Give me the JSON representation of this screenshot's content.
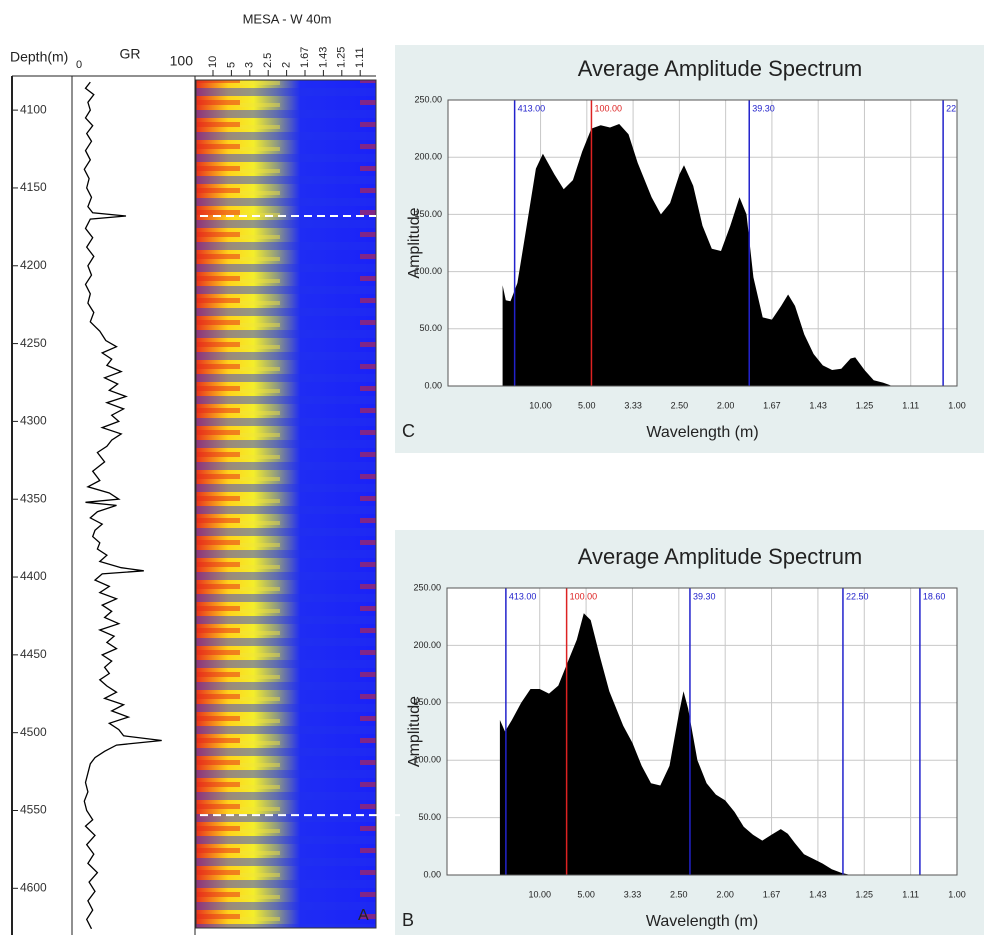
{
  "chart_data": [
    {
      "type": "welllog",
      "ylabel": "Depth(m)",
      "ylim": [
        4080,
        4630
      ],
      "yticks": [
        4100,
        4150,
        4200,
        4250,
        4300,
        4350,
        4400,
        4450,
        4500,
        4550,
        4600
      ],
      "series": [
        {
          "name": "GR",
          "color": "#000000",
          "xlim": [
            0,
            100
          ],
          "xticks": [
            0,
            100
          ],
          "y": [
            4082,
            4086,
            4090,
            4095,
            4100,
            4105,
            4110,
            4115,
            4120,
            4126,
            4132,
            4138,
            4144,
            4150,
            4156,
            4162,
            4166,
            4168,
            4170,
            4176,
            4182,
            4188,
            4194,
            4200,
            4206,
            4212,
            4218,
            4224,
            4230,
            4236,
            4242,
            4248,
            4252,
            4256,
            4260,
            4264,
            4268,
            4272,
            4276,
            4280,
            4284,
            4288,
            4292,
            4296,
            4300,
            4304,
            4308,
            4312,
            4316,
            4320,
            4326,
            4332,
            4338,
            4342,
            4346,
            4350,
            4352,
            4354,
            4358,
            4362,
            4366,
            4370,
            4374,
            4378,
            4382,
            4386,
            4390,
            4394,
            4396,
            4398,
            4402,
            4406,
            4410,
            4414,
            4418,
            4422,
            4426,
            4430,
            4434,
            4438,
            4442,
            4446,
            4450,
            4454,
            4458,
            4462,
            4466,
            4470,
            4474,
            4478,
            4482,
            4486,
            4490,
            4494,
            4498,
            4502,
            4505,
            4508,
            4512,
            4516,
            4520,
            4526,
            4532,
            4538,
            4544,
            4550,
            4556,
            4560,
            4566,
            4572,
            4578,
            4584,
            4590,
            4596,
            4602,
            4608,
            4614,
            4620,
            4626
          ],
          "values": [
            12,
            8,
            15,
            10,
            12,
            8,
            14,
            9,
            13,
            8,
            12,
            7,
            11,
            9,
            13,
            10,
            14,
            42,
            12,
            8,
            14,
            9,
            15,
            10,
            13,
            8,
            12,
            10,
            15,
            12,
            20,
            25,
            34,
            22,
            30,
            26,
            38,
            24,
            35,
            28,
            42,
            26,
            40,
            30,
            36,
            22,
            38,
            30,
            26,
            18,
            24,
            14,
            20,
            10,
            28,
            36,
            8,
            34,
            18,
            12,
            22,
            16,
            14,
            20,
            18,
            26,
            20,
            38,
            57,
            22,
            16,
            28,
            20,
            34,
            22,
            30,
            24,
            36,
            20,
            32,
            26,
            34,
            22,
            30,
            24,
            28,
            20,
            26,
            34,
            24,
            40,
            30,
            44,
            28,
            36,
            40,
            72,
            34,
            24,
            16,
            12,
            10,
            8,
            10,
            7,
            9,
            14,
            8,
            16,
            9,
            15,
            10,
            18,
            11,
            16,
            10,
            14,
            9,
            13
          ]
        }
      ],
      "spectrogram": {
        "title": "MESA - W 40m",
        "categories": [
          "10",
          "5",
          "3",
          "2.5",
          "2",
          "1.67",
          "1.43",
          "1.25",
          "1.11"
        ],
        "panel_label": "A",
        "dashed_depths": [
          4168,
          4553
        ]
      }
    },
    {
      "type": "area",
      "title": "Average Amplitude Spectrum",
      "xlabel": "Wavelength (m)",
      "ylabel": "Amplitude",
      "panel_label": "C",
      "color": "#000000",
      "background": "#e6efef",
      "grid": true,
      "xlim": [
        -0.1,
        1.0
      ],
      "ylim": [
        0,
        250
      ],
      "xticks": [
        {
          "value": 0.1,
          "label": "10.00"
        },
        {
          "value": 0.2,
          "label": "5.00"
        },
        {
          "value": 0.3,
          "label": "3.33"
        },
        {
          "value": 0.4,
          "label": "2.50"
        },
        {
          "value": 0.5,
          "label": "2.00"
        },
        {
          "value": 0.6,
          "label": "1.67"
        },
        {
          "value": 0.7,
          "label": "1.43"
        },
        {
          "value": 0.8,
          "label": "1.25"
        },
        {
          "value": 0.9,
          "label": "1.11"
        },
        {
          "value": 1.0,
          "label": "1.00"
        }
      ],
      "yticks": [
        {
          "value": 0,
          "label": "0.00"
        },
        {
          "value": 50,
          "label": "50.00"
        },
        {
          "value": 100,
          "label": "100.00"
        },
        {
          "value": 150,
          "label": "150.00"
        },
        {
          "value": 200,
          "label": "200.00"
        },
        {
          "value": 250,
          "label": "250.00"
        }
      ],
      "x": [
        0.018,
        0.025,
        0.035,
        0.05,
        0.07,
        0.09,
        0.105,
        0.13,
        0.15,
        0.17,
        0.19,
        0.21,
        0.23,
        0.25,
        0.27,
        0.29,
        0.31,
        0.34,
        0.36,
        0.38,
        0.4,
        0.41,
        0.43,
        0.45,
        0.47,
        0.49,
        0.51,
        0.53,
        0.545,
        0.56,
        0.58,
        0.6,
        0.62,
        0.635,
        0.65,
        0.67,
        0.69,
        0.71,
        0.73,
        0.75,
        0.77,
        0.78,
        0.8,
        0.82,
        0.84,
        0.86
      ],
      "values": [
        88,
        75,
        74,
        90,
        140,
        190,
        203,
        185,
        172,
        180,
        205,
        225,
        228,
        226,
        229,
        220,
        195,
        165,
        150,
        160,
        185,
        193,
        175,
        140,
        120,
        118,
        140,
        165,
        150,
        95,
        60,
        58,
        70,
        80,
        70,
        45,
        28,
        18,
        14,
        15,
        24,
        25,
        14,
        5,
        3,
        0
      ],
      "markers": [
        {
          "label": "413.00",
          "x": 0.044,
          "color": "#2222cc"
        },
        {
          "label": "100.00",
          "x": 0.21,
          "color": "#dd2222"
        },
        {
          "label": "39.30",
          "x": 0.551,
          "color": "#2222cc"
        },
        {
          "label": "22",
          "x": 0.97,
          "color": "#2222cc"
        }
      ]
    },
    {
      "type": "area",
      "title": "Average Amplitude Spectrum",
      "xlabel": "Wavelength (m)",
      "ylabel": "Amplitude",
      "panel_label": "B",
      "color": "#000000",
      "background": "#e6efef",
      "grid": true,
      "xlim": [
        -0.1,
        1.0
      ],
      "ylim": [
        0,
        250
      ],
      "xticks": [
        {
          "value": 0.1,
          "label": "10.00"
        },
        {
          "value": 0.2,
          "label": "5.00"
        },
        {
          "value": 0.3,
          "label": "3.33"
        },
        {
          "value": 0.4,
          "label": "2.50"
        },
        {
          "value": 0.5,
          "label": "2.00"
        },
        {
          "value": 0.6,
          "label": "1.67"
        },
        {
          "value": 0.7,
          "label": "1.43"
        },
        {
          "value": 0.8,
          "label": "1.25"
        },
        {
          "value": 0.9,
          "label": "1.11"
        },
        {
          "value": 1.0,
          "label": "1.00"
        }
      ],
      "yticks": [
        {
          "value": 0,
          "label": "0.00"
        },
        {
          "value": 50,
          "label": "50.00"
        },
        {
          "value": 100,
          "label": "100.00"
        },
        {
          "value": 150,
          "label": "150.00"
        },
        {
          "value": 200,
          "label": "200.00"
        },
        {
          "value": 250,
          "label": "250.00"
        }
      ],
      "x": [
        0.014,
        0.025,
        0.04,
        0.06,
        0.08,
        0.1,
        0.12,
        0.14,
        0.16,
        0.18,
        0.195,
        0.21,
        0.23,
        0.25,
        0.28,
        0.3,
        0.32,
        0.34,
        0.36,
        0.38,
        0.4,
        0.41,
        0.42,
        0.44,
        0.46,
        0.48,
        0.5,
        0.52,
        0.54,
        0.56,
        0.58,
        0.6,
        0.62,
        0.635,
        0.65,
        0.67,
        0.69,
        0.71,
        0.73,
        0.75,
        0.77
      ],
      "values": [
        135,
        125,
        135,
        150,
        162,
        162,
        158,
        165,
        185,
        205,
        228,
        222,
        190,
        160,
        130,
        115,
        95,
        80,
        78,
        95,
        140,
        160,
        145,
        100,
        80,
        70,
        65,
        55,
        42,
        35,
        30,
        35,
        40,
        36,
        28,
        18,
        14,
        10,
        5,
        2,
        0
      ],
      "markers": [
        {
          "label": "413.00",
          "x": 0.027,
          "color": "#2222cc"
        },
        {
          "label": "100.00",
          "x": 0.158,
          "color": "#dd2222"
        },
        {
          "label": "39.30",
          "x": 0.424,
          "color": "#2222cc"
        },
        {
          "label": "22.50",
          "x": 0.754,
          "color": "#2222cc"
        },
        {
          "label": "18.60",
          "x": 0.92,
          "color": "#2222cc"
        }
      ]
    }
  ]
}
